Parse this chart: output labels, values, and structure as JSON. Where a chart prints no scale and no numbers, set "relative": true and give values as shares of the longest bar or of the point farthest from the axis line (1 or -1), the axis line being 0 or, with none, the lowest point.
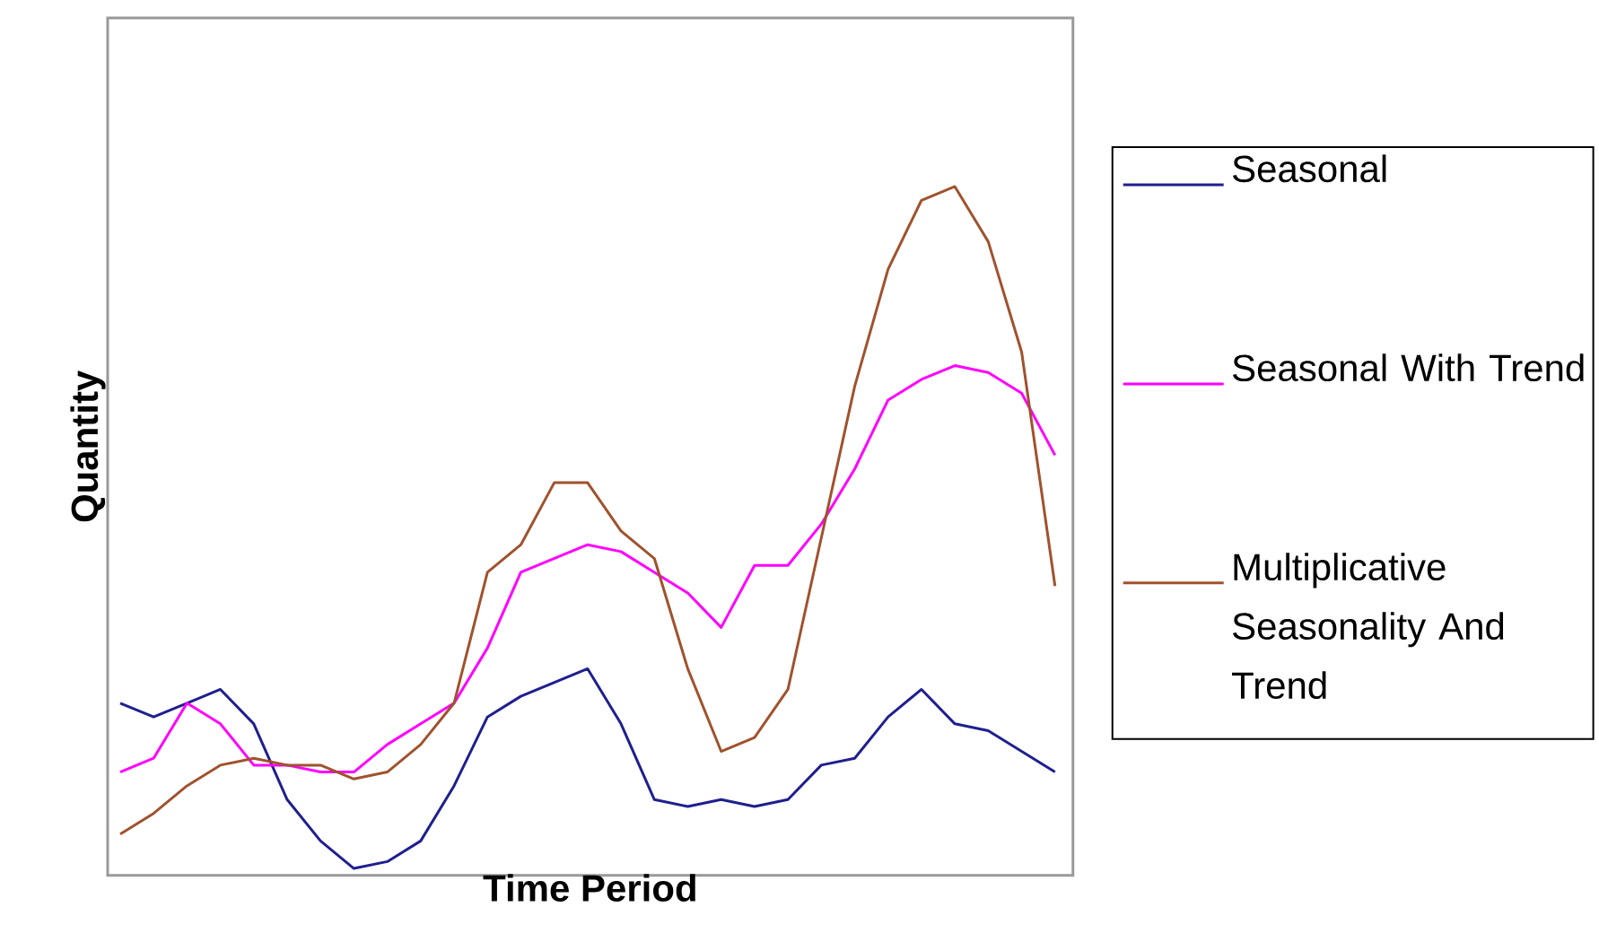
{
  "chart_data": {
    "type": "line",
    "xlabel": "Time Period",
    "ylabel": "Quantity",
    "relative": true,
    "legend": "right",
    "categories": [
      null,
      null,
      null,
      null,
      null,
      null,
      null,
      null,
      null,
      null,
      null,
      null,
      null,
      null,
      null,
      null,
      null,
      null,
      null,
      null,
      null,
      null,
      null,
      null,
      null,
      null,
      null,
      null,
      null
    ],
    "series": [
      {
        "name": "Seasonal",
        "color": "#1f1f8f",
        "values": [
          0.25,
          0.23,
          0.25,
          0.27,
          0.22,
          0.11,
          0.05,
          0.01,
          0.02,
          0.05,
          0.13,
          0.23,
          0.26,
          0.28,
          0.3,
          0.22,
          0.11,
          0.1,
          0.11,
          0.1,
          0.11,
          0.16,
          0.17,
          0.23,
          0.27,
          0.22,
          0.21,
          0.18,
          0.15
        ]
      },
      {
        "name": "Seasonal With Trend",
        "color": "#ff00ff",
        "values": [
          0.15,
          0.17,
          0.25,
          0.22,
          0.16,
          0.16,
          0.15,
          0.15,
          0.19,
          0.22,
          0.25,
          0.33,
          0.44,
          0.46,
          0.48,
          0.47,
          0.44,
          0.41,
          0.36,
          0.45,
          0.45,
          0.51,
          0.59,
          0.69,
          0.72,
          0.74,
          0.73,
          0.7,
          0.61
        ]
      },
      {
        "name": "Multiplicative Seasonality And Trend",
        "color": "#a0522d",
        "values": [
          0.06,
          0.09,
          0.13,
          0.16,
          0.17,
          0.16,
          0.16,
          0.14,
          0.15,
          0.19,
          0.25,
          0.44,
          0.48,
          0.57,
          0.57,
          0.5,
          0.46,
          0.3,
          0.18,
          0.2,
          0.27,
          0.49,
          0.71,
          0.88,
          0.98,
          1,
          0.92,
          0.76,
          0.42
        ]
      }
    ]
  }
}
